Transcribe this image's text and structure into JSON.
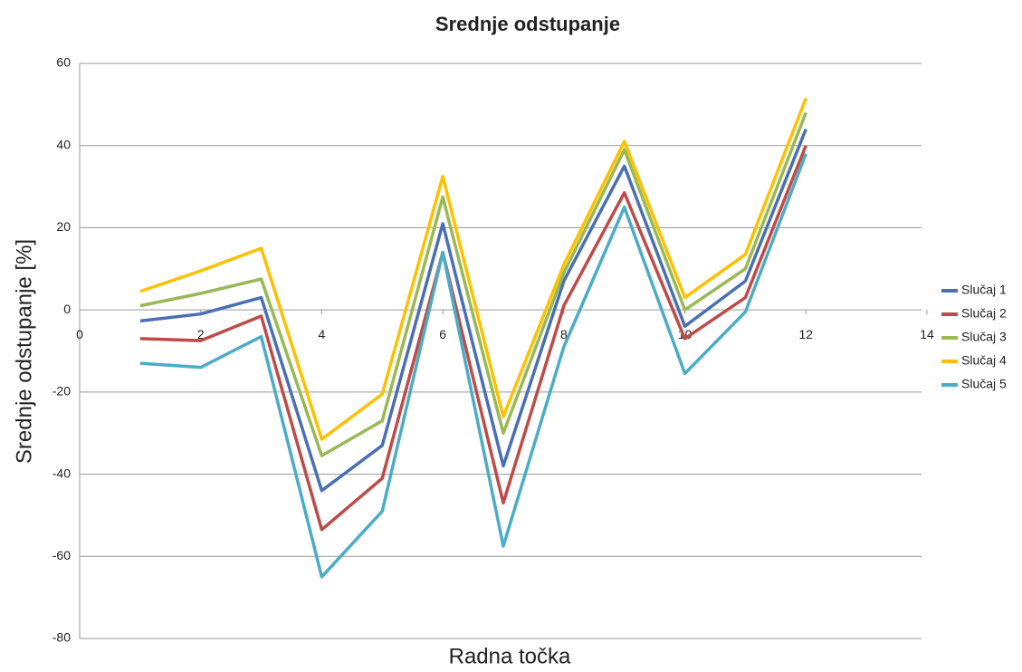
{
  "chart_data": {
    "type": "line",
    "title": "Srednje odstupanje",
    "xlabel": "Radna točka",
    "ylabel": "Srednje odstupanje [%]",
    "x": [
      1,
      2,
      3,
      4,
      5,
      6,
      7,
      8,
      9,
      10,
      11,
      12
    ],
    "series": [
      {
        "name": "Slučaj 1",
        "color": "#4a6fb5",
        "values": [
          -2.7,
          -1,
          3,
          -44,
          -33,
          21,
          -38,
          7,
          35,
          -4,
          7,
          44
        ]
      },
      {
        "name": "Slučaj 2",
        "color": "#be4b48",
        "values": [
          -7,
          -7.5,
          -1.5,
          -53.5,
          -41,
          14,
          -47,
          1,
          28.5,
          -7,
          3,
          40
        ]
      },
      {
        "name": "Slučaj 3",
        "color": "#98b954",
        "values": [
          1,
          4,
          7.5,
          -35.5,
          -27,
          27.5,
          -30,
          9,
          39,
          0,
          10,
          48
        ]
      },
      {
        "name": "Slučaj 4",
        "color": "#ffc000",
        "values": [
          4.5,
          9.5,
          15,
          -31.5,
          -20.5,
          32.5,
          -26,
          11,
          41,
          3,
          13.5,
          51.5
        ]
      },
      {
        "name": "Slučaj 5",
        "color": "#4bacc6",
        "values": [
          -13,
          -14,
          -6.5,
          -65,
          -49,
          14,
          -57.5,
          -9,
          25,
          -15.5,
          -0.5,
          38
        ]
      }
    ],
    "xlim": [
      0,
      14
    ],
    "xticks": [
      0,
      2,
      4,
      6,
      8,
      10,
      12,
      14
    ],
    "ylim": [
      -80,
      60
    ],
    "yticks": [
      -80,
      -60,
      -40,
      -20,
      0,
      20,
      40,
      60
    ],
    "grid": true,
    "legend": "right"
  }
}
